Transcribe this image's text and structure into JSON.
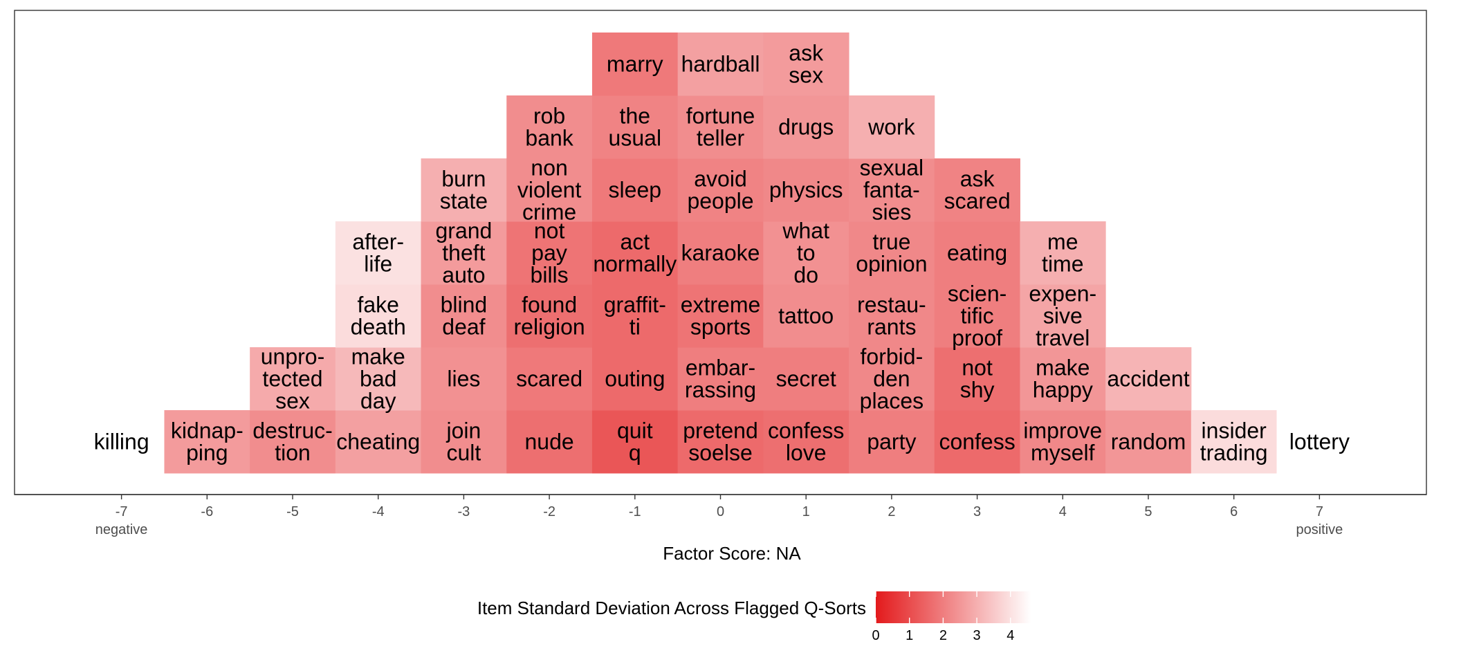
{
  "chart_data": {
    "type": "heatmap",
    "xlabel": "Factor Score: NA",
    "x_ticks": [
      -7,
      -6,
      -5,
      -4,
      -3,
      -2,
      -1,
      0,
      1,
      2,
      3,
      4,
      5,
      6,
      7
    ],
    "x_tick_sublabels": {
      "-7": "negative",
      "7": "positive"
    },
    "xlim": [
      -8.25,
      8.25
    ],
    "grid": false,
    "legend": {
      "title": "Item Standard Deviation Across Flagged Q-Sorts",
      "position": "bottom",
      "ticks": [
        0,
        1,
        2,
        3,
        4
      ],
      "range": [
        0,
        4.6
      ],
      "color_low": "#e31a1c",
      "color_high": "#ffffff"
    },
    "columns": [
      {
        "score": -7,
        "items": [
          {
            "label": "killing",
            "sd": 4.6
          }
        ]
      },
      {
        "score": -6,
        "items": [
          {
            "label": "kidnap-\nping",
            "sd": 2.6
          }
        ]
      },
      {
        "score": -5,
        "items": [
          {
            "label": "destruc-\ntion",
            "sd": 2.3
          },
          {
            "label": "unpro-\ntected\nsex",
            "sd": 2.9
          }
        ]
      },
      {
        "score": -4,
        "items": [
          {
            "label": "cheating",
            "sd": 2.7
          },
          {
            "label": "make\nbad\nday",
            "sd": 3.2
          },
          {
            "label": "fake\ndeath",
            "sd": 3.9
          },
          {
            "label": "after-\nlife",
            "sd": 4.0
          }
        ]
      },
      {
        "score": -3,
        "items": [
          {
            "label": "join\ncult",
            "sd": 2.3
          },
          {
            "label": "lies",
            "sd": 2.4
          },
          {
            "label": "blind\ndeaf",
            "sd": 2.3
          },
          {
            "label": "grand\ntheft\nauto",
            "sd": 2.6
          },
          {
            "label": "burn\nstate",
            "sd": 3.0
          }
        ]
      },
      {
        "score": -2,
        "items": [
          {
            "label": "nude",
            "sd": 1.7
          },
          {
            "label": "scared",
            "sd": 1.9
          },
          {
            "label": "found\nreligion",
            "sd": 1.7
          },
          {
            "label": "not\npay\nbills",
            "sd": 1.8
          },
          {
            "label": "non\nviolent\ncrime",
            "sd": 2.3
          },
          {
            "label": "rob\nbank",
            "sd": 2.3
          }
        ]
      },
      {
        "score": -1,
        "items": [
          {
            "label": "quit\nq",
            "sd": 1.2
          },
          {
            "label": "outing",
            "sd": 1.6
          },
          {
            "label": "graffit-\nti",
            "sd": 1.6
          },
          {
            "label": "act\nnormally",
            "sd": 1.6
          },
          {
            "label": "sleep",
            "sd": 1.9
          },
          {
            "label": "the\nusual",
            "sd": 2.1
          },
          {
            "label": "marry",
            "sd": 1.9
          }
        ]
      },
      {
        "score": 0,
        "items": [
          {
            "label": "pretend\nsoelse",
            "sd": 1.6
          },
          {
            "label": "embar-\nrassing",
            "sd": 2.0
          },
          {
            "label": "extreme\nsports",
            "sd": 1.8
          },
          {
            "label": "karaoke",
            "sd": 2.0
          },
          {
            "label": "avoid\npeople",
            "sd": 2.1
          },
          {
            "label": "fortune\nteller",
            "sd": 2.3
          },
          {
            "label": "hardball",
            "sd": 2.7
          }
        ]
      },
      {
        "score": 1,
        "items": [
          {
            "label": "confess\nlove",
            "sd": 1.7
          },
          {
            "label": "secret",
            "sd": 2.0
          },
          {
            "label": "tattoo",
            "sd": 2.3
          },
          {
            "label": "what\nto\ndo",
            "sd": 2.4
          },
          {
            "label": "physics",
            "sd": 2.2
          },
          {
            "label": "drugs",
            "sd": 2.5
          },
          {
            "label": "ask\nsex",
            "sd": 2.6
          }
        ]
      },
      {
        "score": 2,
        "items": [
          {
            "label": "party",
            "sd": 2.0
          },
          {
            "label": "forbid-\nden\nplaces",
            "sd": 2.2
          },
          {
            "label": "restau-\nrants",
            "sd": 2.2
          },
          {
            "label": "true\nopinion",
            "sd": 2.2
          },
          {
            "label": "sexual\nfanta-\nsies",
            "sd": 2.3
          },
          {
            "label": "work",
            "sd": 3.0
          }
        ]
      },
      {
        "score": 3,
        "items": [
          {
            "label": "confess",
            "sd": 1.6
          },
          {
            "label": "not\nshy",
            "sd": 1.7
          },
          {
            "label": "scien-\ntific\nproof",
            "sd": 2.0
          },
          {
            "label": "eating",
            "sd": 2.0
          },
          {
            "label": "ask\nscared",
            "sd": 2.1
          }
        ]
      },
      {
        "score": 4,
        "items": [
          {
            "label": "improve\nmyself",
            "sd": 2.2
          },
          {
            "label": "make\nhappy",
            "sd": 2.5
          },
          {
            "label": "expen-\nsive\ntravel",
            "sd": 2.8
          },
          {
            "label": "me\ntime",
            "sd": 3.0
          }
        ]
      },
      {
        "score": 5,
        "items": [
          {
            "label": "random",
            "sd": 2.5
          },
          {
            "label": "accident",
            "sd": 3.1
          }
        ]
      },
      {
        "score": 6,
        "items": [
          {
            "label": "insider\ntrading",
            "sd": 3.9
          }
        ]
      },
      {
        "score": 7,
        "items": [
          {
            "label": "lottery",
            "sd": 4.6
          }
        ]
      }
    ]
  }
}
